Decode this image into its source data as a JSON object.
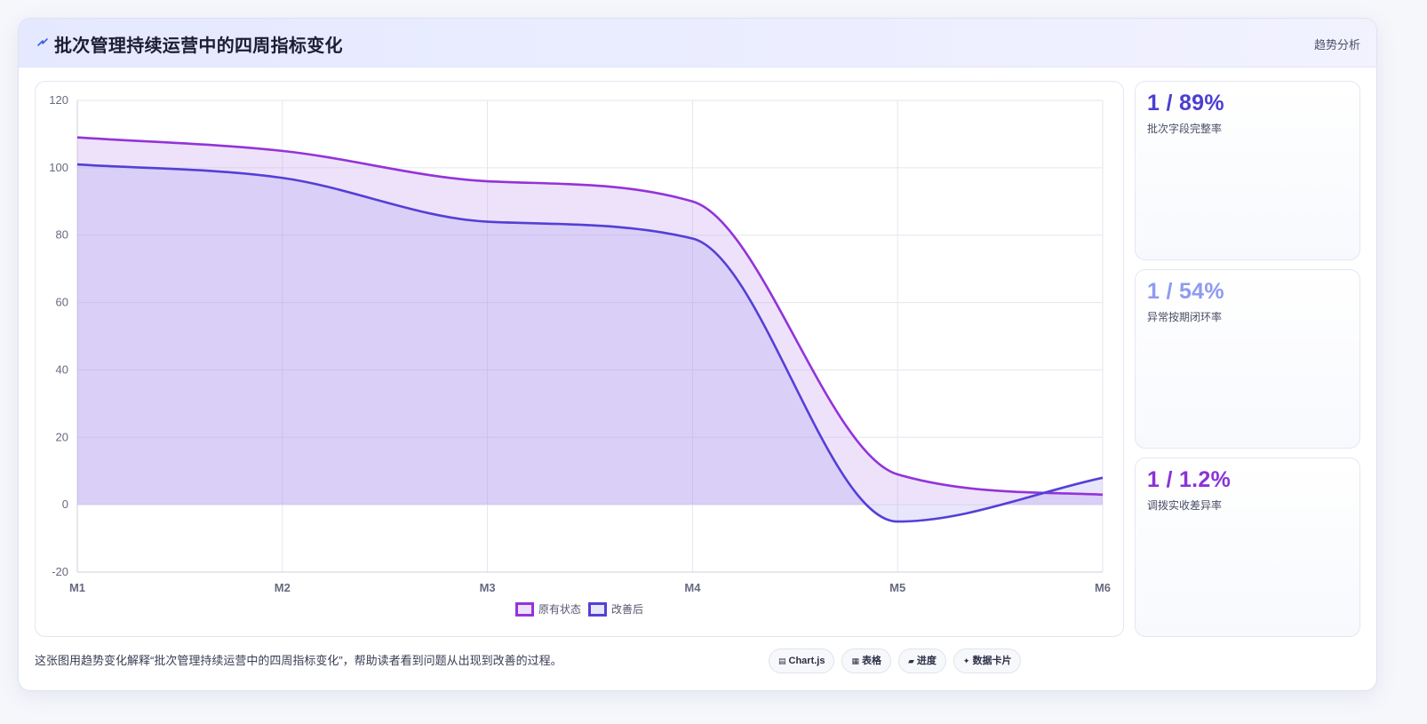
{
  "header": {
    "icon": "lightning-icon",
    "title": "批次管理持续运营中的四周指标变化",
    "tag": "趋势分析"
  },
  "kpis": [
    {
      "value": "1 / 89%",
      "label": "批次字段完整率",
      "color": "#4b3fd1"
    },
    {
      "value": "1 / 54%",
      "label": "异常按期闭环率",
      "color": "#8f9bf0"
    },
    {
      "value": "1 / 1.2%",
      "label": "调拨实收差异率",
      "color": "#8a33d6"
    }
  ],
  "caption": "这张图用趋势变化解释“批次管理持续运营中的四周指标变化”，帮助读者看到问题从出现到改善的过程。",
  "chips": [
    {
      "icon": "chart-icon",
      "glyph": "▤",
      "label": "Chart.js"
    },
    {
      "icon": "table-icon",
      "glyph": "▦",
      "label": "表格"
    },
    {
      "icon": "progress-icon",
      "glyph": "▰",
      "label": "进度"
    },
    {
      "icon": "card-icon",
      "glyph": "✦",
      "label": "数据卡片"
    }
  ],
  "chart_data": {
    "type": "area",
    "categories": [
      "M1",
      "M2",
      "M3",
      "M4",
      "M5",
      "M6"
    ],
    "series": [
      {
        "name": "原有状态",
        "values": [
          109,
          105,
          96,
          90,
          9,
          3
        ],
        "color": "#9333d9",
        "fill": "rgba(200,160,240,0.30)"
      },
      {
        "name": "改善后",
        "values": [
          101,
          97,
          84,
          79,
          -5,
          8
        ],
        "color": "#5340d6",
        "fill": "rgba(150,140,235,0.22)"
      }
    ],
    "ylim": [
      -20,
      120
    ],
    "yticks": [
      -20,
      0,
      20,
      40,
      60,
      80,
      100,
      120
    ],
    "grid": true,
    "legend": "bottom-center"
  }
}
